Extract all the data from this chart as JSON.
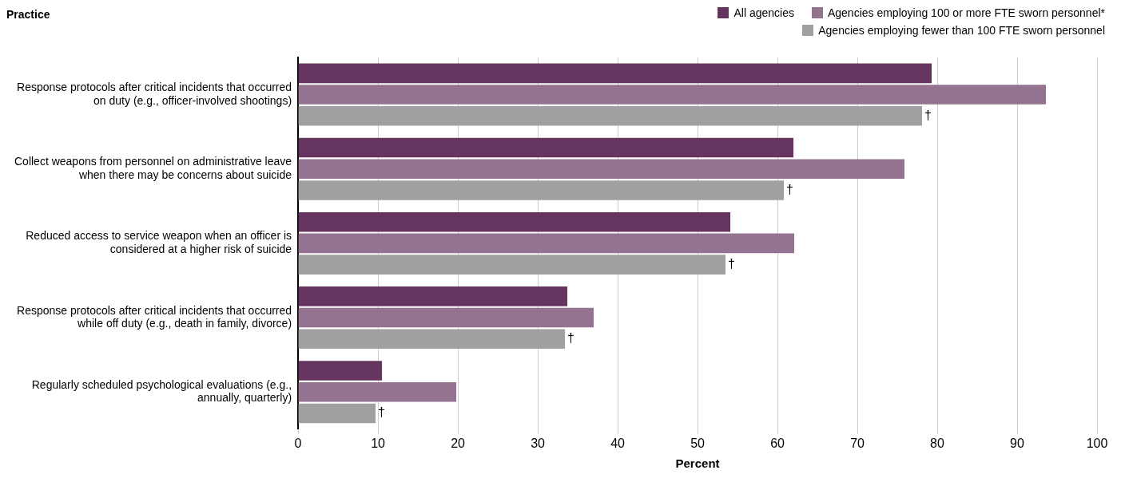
{
  "chart_data": {
    "type": "bar",
    "orientation": "horizontal",
    "ylabel": "Practice",
    "xlabel": "Percent",
    "categories": [
      "Response protocols after critical incidents that occurred on duty (e.g., officer-involved shootings)",
      "Collect weapons from personnel on administrative leave when there may be concerns about suicide",
      "Reduced access to service weapon when an officer is considered at a higher risk of suicide",
      "Response protocols after critical incidents that occurred while off duty (e.g., death in family, divorce)",
      "Regularly scheduled psychological evaluations (e.g., annually, quarterly)"
    ],
    "series": [
      {
        "name": "All agencies",
        "color": "#66355f",
        "values": [
          79.3,
          62.0,
          54.1,
          33.7,
          10.5
        ]
      },
      {
        "name": "Agencies employing 100 or more FTE sworn personnel*",
        "color": "#93738f",
        "values": [
          93.6,
          75.9,
          62.1,
          37.0,
          19.8
        ]
      },
      {
        "name": "Agencies employing fewer than 100 FTE sworn personnel",
        "color": "#a0a0a2",
        "values": [
          78.1,
          60.8,
          53.5,
          33.4,
          9.7
        ],
        "value_labels": [
          "†",
          "†",
          "†",
          "†",
          "†"
        ]
      }
    ],
    "xlim": [
      0,
      100
    ],
    "xticks": [
      0,
      10,
      20,
      30,
      40,
      50,
      60,
      70,
      80,
      90,
      100
    ],
    "grid": "x",
    "legend": "top right"
  }
}
